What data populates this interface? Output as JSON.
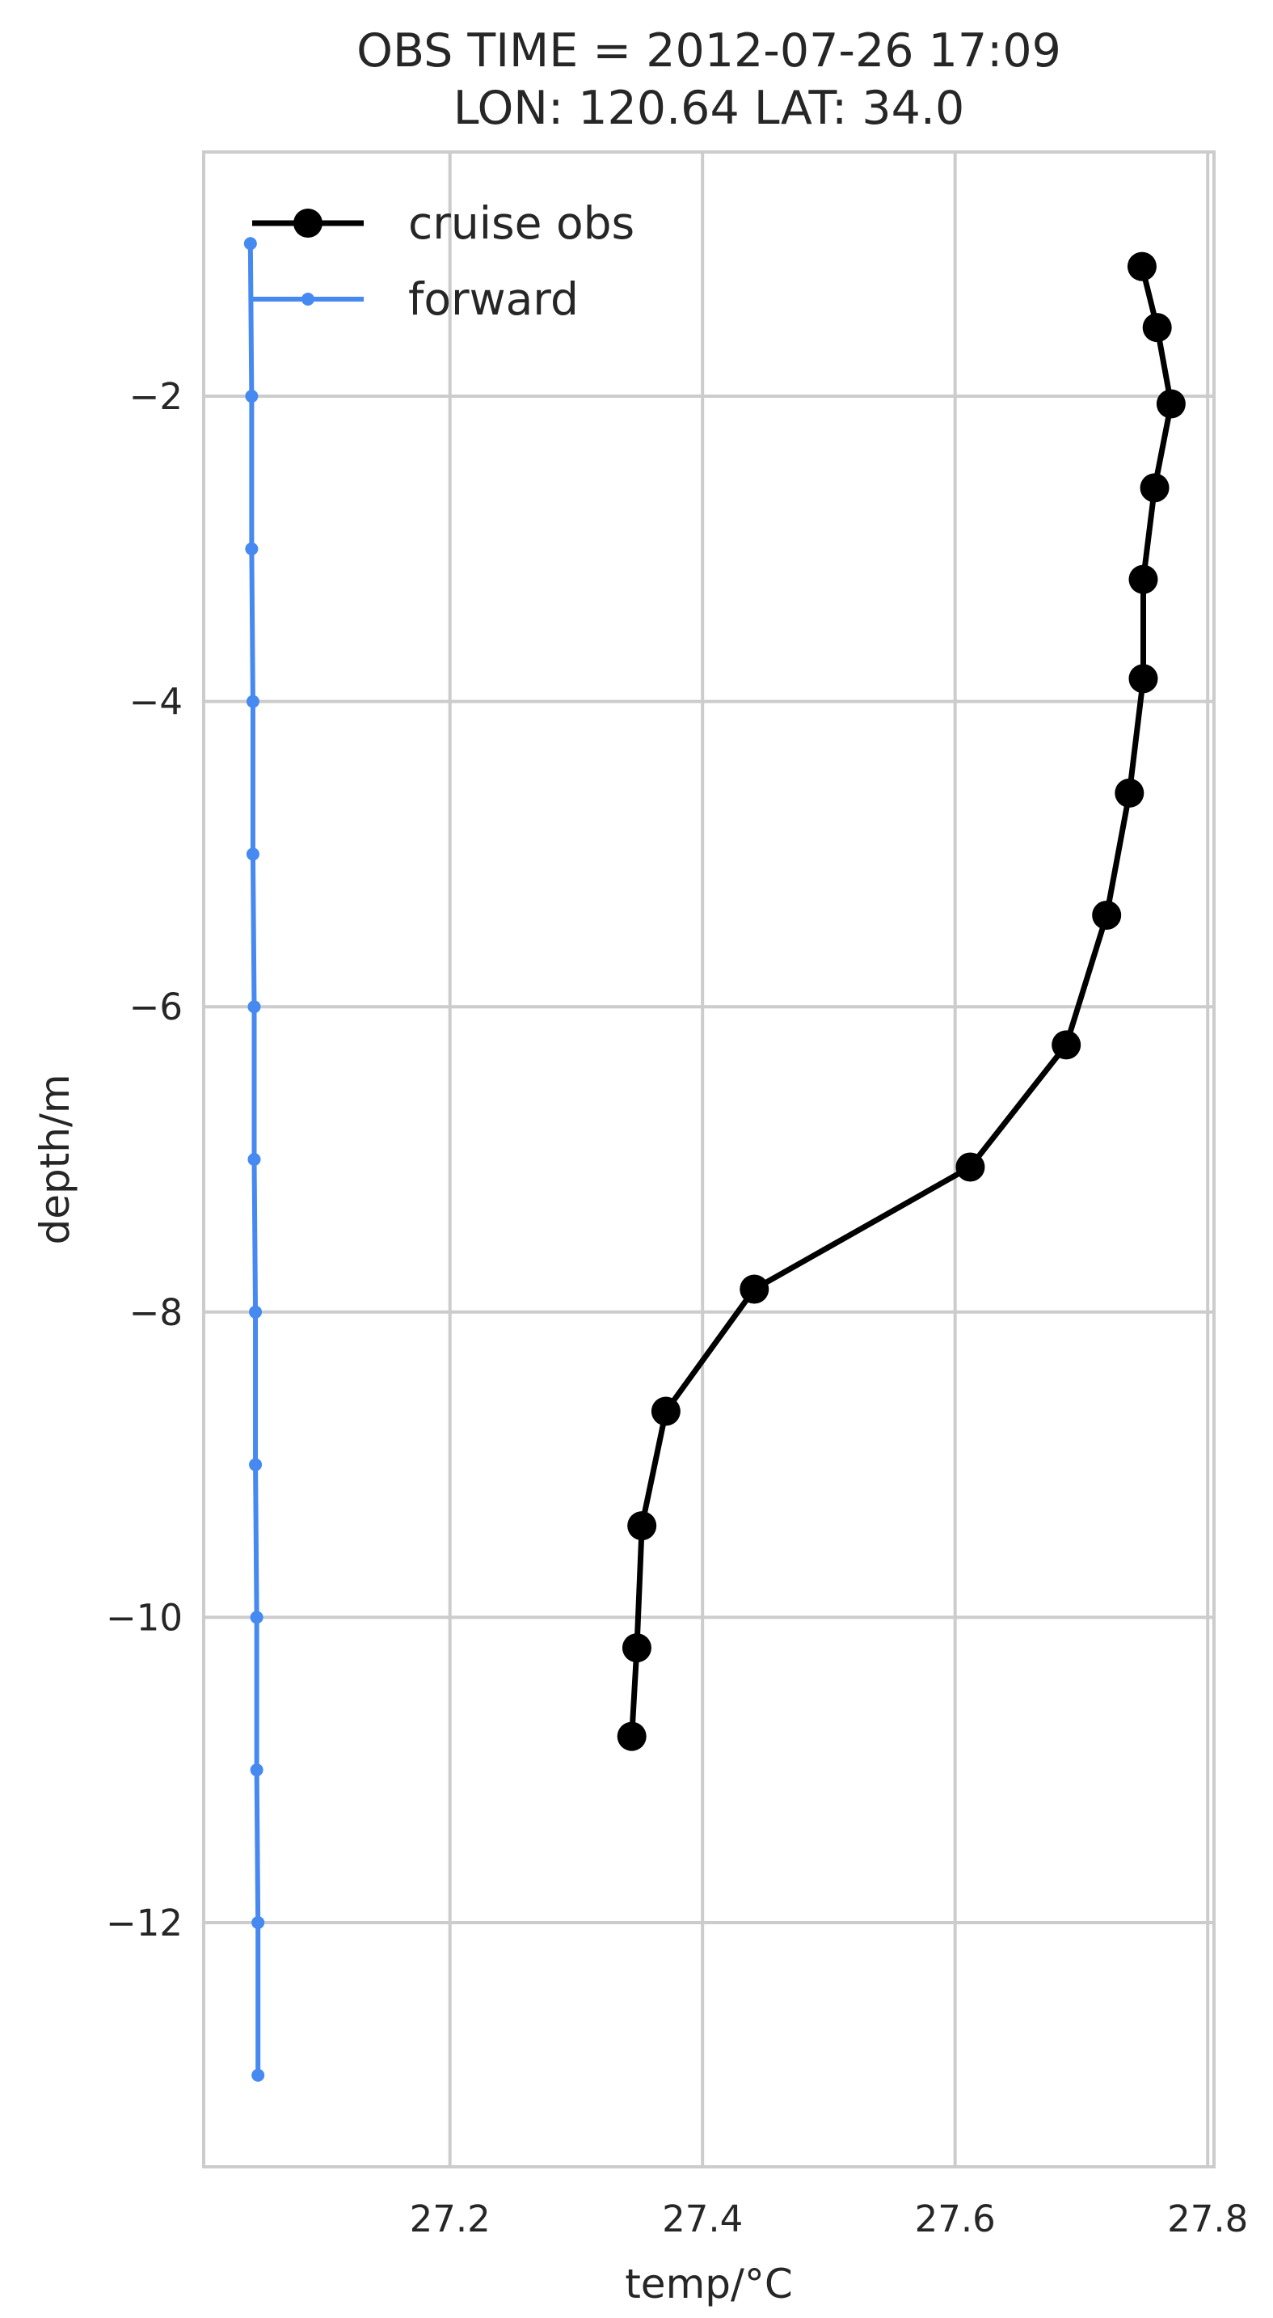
{
  "chart_data": {
    "type": "line",
    "title_line1": "OBS TIME = 2012-07-26 17:09",
    "title_line2": "LON: 120.64 LAT: 34.0",
    "xlabel": "temp/°C",
    "ylabel": "depth/m",
    "xlim": [
      27.005,
      27.805
    ],
    "ylim": [
      -13.6,
      -0.4
    ],
    "xticks": [
      27.2,
      27.4,
      27.6,
      27.8
    ],
    "xtick_labels": [
      "27.2",
      "27.4",
      "27.6",
      "27.8"
    ],
    "yticks": [
      -2,
      -4,
      -6,
      -8,
      -10,
      -12
    ],
    "ytick_labels": [
      "−2",
      "−4",
      "−6",
      "−8",
      "−10",
      "−12"
    ],
    "grid": true,
    "legend_position": "upper-left",
    "series": [
      {
        "name": "cruise obs",
        "color": "#000000",
        "marker": "large-circle",
        "x": [
          27.748,
          27.76,
          27.771,
          27.758,
          27.749,
          27.749,
          27.738,
          27.72,
          27.688,
          27.612,
          27.441,
          27.371,
          27.352,
          27.348,
          27.344
        ],
        "y": [
          -1.15,
          -1.55,
          -2.05,
          -2.6,
          -3.2,
          -3.85,
          -4.6,
          -5.4,
          -6.25,
          -7.05,
          -7.85,
          -8.65,
          -9.4,
          -10.2,
          -10.78
        ]
      },
      {
        "name": "forward",
        "color": "#4689f0",
        "marker": "small-circle",
        "x": [
          27.042,
          27.043,
          27.043,
          27.044,
          27.044,
          27.045,
          27.045,
          27.046,
          27.046,
          27.047,
          27.047,
          27.048,
          27.048
        ],
        "y": [
          -1.0,
          -2.0,
          -3.0,
          -4.0,
          -5.0,
          -6.0,
          -7.0,
          -8.0,
          -9.0,
          -10.0,
          -11.0,
          -12.0,
          -13.0
        ]
      }
    ]
  }
}
